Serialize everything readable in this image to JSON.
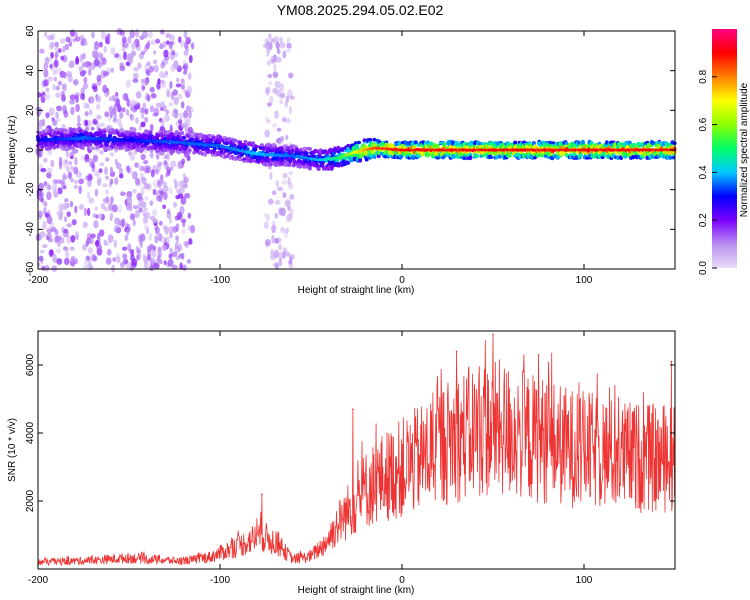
{
  "chart_data": [
    {
      "type": "heatmap",
      "title": "YM08.2025.294.05.02.E02",
      "xlabel": "Height of straight line (km)",
      "ylabel": "Frequency (Hz)",
      "xlim": [
        -200,
        150
      ],
      "ylim": [
        -60,
        60
      ],
      "x_ticks": [
        -200,
        -100,
        0,
        100
      ],
      "y_ticks": [
        -60,
        -40,
        -20,
        0,
        20,
        40,
        60
      ],
      "colorbar": {
        "label": "Normalized spectral amplitude",
        "range": [
          0,
          1
        ],
        "ticks": [
          0.0,
          0.2,
          0.4,
          0.6,
          0.8
        ],
        "colormap": [
          "#e8ddf6",
          "#b98ff0",
          "#7b00ff",
          "#0000ff",
          "#00c8ff",
          "#00ff66",
          "#8cff00",
          "#ffff00",
          "#ff8000",
          "#ff0000",
          "#ff0080"
        ]
      },
      "ridge": {
        "description": "Dominant frequency vs height",
        "x": [
          -200,
          -175,
          -150,
          -125,
          -100,
          -80,
          -60,
          -45,
          -35,
          -25,
          -15,
          0,
          50,
          100,
          150
        ],
        "y": [
          5,
          6,
          5,
          4,
          2,
          -2,
          -3,
          -5,
          -4,
          -1,
          1,
          0,
          0,
          0,
          0
        ],
        "peak_amplitude": [
          0.3,
          0.35,
          0.3,
          0.35,
          0.35,
          0.4,
          0.35,
          0.4,
          0.5,
          0.7,
          0.85,
          0.9,
          0.9,
          0.9,
          0.9
        ]
      },
      "noise_bands": [
        {
          "x_from": -200,
          "x_to": -115,
          "y_from": -60,
          "y_to": 60,
          "level": 0.15
        },
        {
          "x_from": -75,
          "x_to": -60,
          "y_from": -60,
          "y_to": 60,
          "level": 0.1
        }
      ]
    },
    {
      "type": "line",
      "xlabel": "Height of straight line (km)",
      "ylabel": "SNR (10 * v/v)",
      "xlim": [
        -200,
        150
      ],
      "ylim": [
        0,
        7000
      ],
      "x_ticks": [
        -200,
        -100,
        0,
        100
      ],
      "y_ticks": [
        2000,
        4000,
        6000
      ],
      "color": "#ee3333",
      "envelope": {
        "x": [
          -200,
          -170,
          -150,
          -120,
          -105,
          -90,
          -78,
          -70,
          -60,
          -50,
          -42,
          -35,
          -28,
          -20,
          -10,
          0,
          10,
          20,
          30,
          40,
          50,
          60,
          70,
          80,
          90,
          100,
          110,
          120,
          130,
          140,
          150
        ],
        "y": [
          220,
          280,
          360,
          250,
          400,
          750,
          1100,
          900,
          320,
          420,
          850,
          1500,
          2000,
          2600,
          3000,
          3300,
          3600,
          4000,
          4300,
          4500,
          4600,
          4500,
          4300,
          4200,
          4000,
          3900,
          3800,
          3700,
          3650,
          3600,
          3600
        ]
      },
      "spikes": [
        {
          "x": 50,
          "y": 6900
        },
        {
          "x": 30,
          "y": 6400
        },
        {
          "x": 75,
          "y": 6300
        },
        {
          "x": 148,
          "y": 6100
        },
        {
          "x": -27,
          "y": 4700
        },
        {
          "x": -77,
          "y": 2200
        }
      ]
    }
  ]
}
